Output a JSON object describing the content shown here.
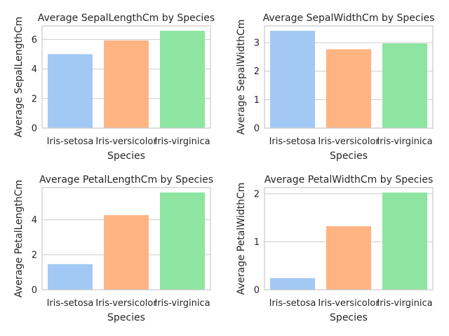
{
  "colors": {
    "setosa": "#a1c9f4",
    "versicolor": "#ffb482",
    "virginica": "#8de5a1",
    "grid": "#cccccc",
    "text": "#262626"
  },
  "chart_data": [
    {
      "type": "bar",
      "title": "Average SepalLengthCm by Species",
      "xlabel": "Species",
      "ylabel": "Average SepalLengthCm",
      "categories": [
        "Iris-setosa",
        "Iris-versicolor",
        "Iris-virginica"
      ],
      "values": [
        5.006,
        5.936,
        6.588
      ],
      "ylim": [
        0,
        6.92
      ],
      "yticks": [
        0,
        2,
        4,
        6
      ],
      "grid": true
    },
    {
      "type": "bar",
      "title": "Average SepalWidthCm by Species",
      "xlabel": "Species",
      "ylabel": "Average SepalWidthCm",
      "categories": [
        "Iris-setosa",
        "Iris-versicolor",
        "Iris-virginica"
      ],
      "values": [
        3.418,
        2.77,
        2.974
      ],
      "ylim": [
        0,
        3.59
      ],
      "yticks": [
        0,
        1,
        2,
        3
      ],
      "grid": true
    },
    {
      "type": "bar",
      "title": "Average PetalLengthCm by Species",
      "xlabel": "Species",
      "ylabel": "Average PetalLengthCm",
      "categories": [
        "Iris-setosa",
        "Iris-versicolor",
        "Iris-virginica"
      ],
      "values": [
        1.464,
        4.26,
        5.552
      ],
      "ylim": [
        0,
        5.83
      ],
      "yticks": [
        0,
        2,
        4
      ],
      "grid": true
    },
    {
      "type": "bar",
      "title": "Average PetalWidthCm by Species",
      "xlabel": "Species",
      "ylabel": "Average PetalWidthCm",
      "categories": [
        "Iris-setosa",
        "Iris-versicolor",
        "Iris-virginica"
      ],
      "values": [
        0.244,
        1.326,
        2.026
      ],
      "ylim": [
        0,
        2.13
      ],
      "yticks": [
        0,
        1,
        2
      ],
      "grid": true
    }
  ]
}
